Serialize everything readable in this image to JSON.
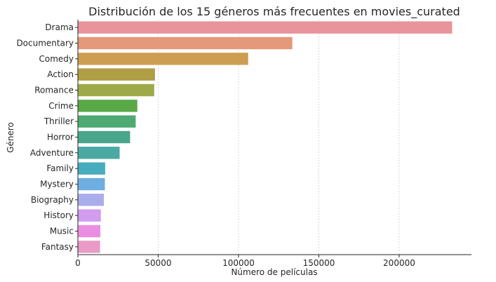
{
  "chart_data": {
    "type": "bar",
    "orientation": "horizontal",
    "title": "Distribución de los 15 géneros más frecuentes en movies_curated",
    "xlabel": "Número de películas",
    "ylabel": "Género",
    "categories": [
      "Drama",
      "Documentary",
      "Comedy",
      "Action",
      "Romance",
      "Crime",
      "Thriller",
      "Horror",
      "Adventure",
      "Family",
      "Mystery",
      "Biography",
      "History",
      "Music",
      "Fantasy"
    ],
    "values": [
      233000,
      133500,
      106000,
      48000,
      47500,
      37000,
      36000,
      32500,
      26000,
      17000,
      16800,
      16200,
      14300,
      14000,
      13800
    ],
    "colors": [
      "#e9939b",
      "#e4997a",
      "#cd9e51",
      "#b09e44",
      "#9ea949",
      "#59a946",
      "#4eaa72",
      "#4aa68a",
      "#4aa9a3",
      "#47acbe",
      "#6eaee1",
      "#a9adeb",
      "#d29cef",
      "#ea8ee2",
      "#e99ac7"
    ],
    "xlim": [
      0,
      245000
    ],
    "xticks": [
      0,
      50000,
      100000,
      150000,
      200000
    ],
    "grid": "x-dashed"
  }
}
